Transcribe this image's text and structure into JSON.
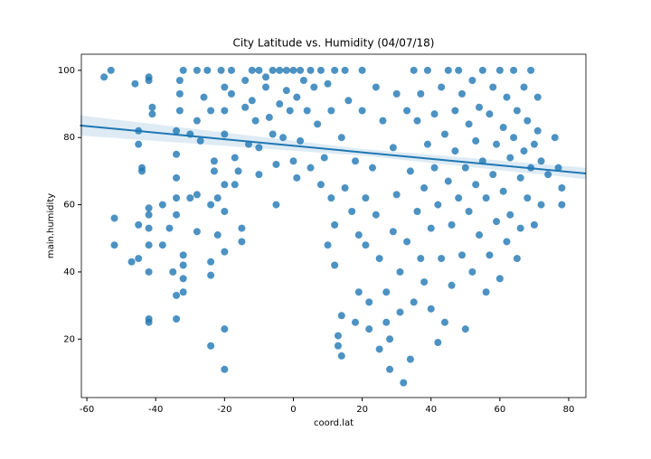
{
  "chart_data": {
    "type": "scatter",
    "title": "City Latitude vs. Humidity (04/07/18)",
    "x_label": "coord.lat",
    "y_label": "main.humidity",
    "color": "#1f77b4",
    "xlim": [
      -61.6,
      85
    ],
    "ylim": [
      2.6,
      104.8
    ],
    "xticks": [
      -60,
      -40,
      -20,
      0,
      20,
      40,
      60,
      80
    ],
    "yticks": [
      20,
      40,
      60,
      80,
      100
    ],
    "series": [
      {
        "x": [
          -55,
          -53,
          -52,
          -52,
          -47,
          -46,
          -45,
          -45,
          -44,
          -44,
          -45,
          -45,
          -42,
          -42,
          -41,
          -41,
          -42,
          -42,
          -42,
          -42,
          -42,
          -42,
          -42,
          -38,
          -38,
          -36,
          -35,
          -34,
          -34,
          -34,
          -34,
          -34,
          -34,
          -34,
          -33,
          -33,
          -32,
          -33,
          -32,
          -32,
          -32,
          -32,
          -30,
          -30,
          -28,
          -28,
          -28,
          -28,
          -27,
          -26,
          -25,
          -24,
          -24,
          -24,
          -24,
          -24,
          -23,
          -23,
          -22,
          -22,
          -21,
          -20,
          -20,
          -20,
          -20,
          -20,
          -20,
          -20,
          -20,
          -18,
          -18,
          -17,
          -17,
          -16,
          -15,
          -15,
          -14,
          -14,
          -13,
          -12,
          -12,
          -11,
          -10,
          -10,
          -10,
          -8,
          -8,
          -7,
          -6,
          -6,
          -5,
          -5,
          -4,
          -4,
          -3,
          -2,
          -2,
          -1,
          0,
          0,
          1,
          1,
          2,
          2,
          3,
          4,
          5,
          5,
          6,
          7,
          8,
          8,
          9,
          10,
          10,
          11,
          11,
          12,
          12,
          12,
          13,
          13,
          14,
          14,
          14,
          15,
          15,
          16,
          17,
          18,
          18,
          19,
          19,
          20,
          20,
          21,
          21,
          22,
          22,
          23,
          24,
          24,
          25,
          25,
          26,
          27,
          27,
          28,
          28,
          29,
          29,
          30,
          30,
          31,
          31,
          32,
          33,
          33,
          34,
          34,
          35,
          35,
          36,
          36,
          37,
          37,
          38,
          38,
          39,
          39,
          40,
          40,
          41,
          41,
          42,
          42,
          43,
          43,
          44,
          44,
          45,
          45,
          46,
          46,
          47,
          47,
          48,
          48,
          49,
          49,
          50,
          50,
          51,
          51,
          52,
          52,
          53,
          53,
          54,
          54,
          55,
          55,
          56,
          56,
          57,
          57,
          58,
          58,
          59,
          59,
          60,
          60,
          61,
          61,
          62,
          62,
          63,
          63,
          64,
          64,
          65,
          65,
          66,
          66,
          67,
          67,
          68,
          68,
          69,
          69,
          70,
          70,
          71,
          71,
          72,
          72,
          74,
          76,
          77,
          78,
          78
        ],
        "values": [
          98,
          100,
          56,
          48,
          43,
          96,
          82,
          78,
          71,
          70,
          54,
          44,
          98,
          97,
          89,
          87,
          59,
          57,
          53,
          48,
          40,
          26,
          25,
          60,
          48,
          53,
          40,
          33,
          26,
          57,
          62,
          68,
          75,
          82,
          93,
          97,
          100,
          88,
          45,
          42,
          38,
          34,
          62,
          81,
          100,
          85,
          63,
          52,
          79,
          92,
          100,
          88,
          60,
          43,
          39,
          18,
          73,
          70,
          62,
          51,
          100,
          95,
          88,
          81,
          66,
          58,
          46,
          23,
          11,
          100,
          93,
          74,
          66,
          70,
          53,
          49,
          97,
          89,
          78,
          100,
          91,
          85,
          100,
          77,
          69,
          98,
          95,
          86,
          100,
          81,
          72,
          60,
          100,
          90,
          80,
          100,
          94,
          88,
          100,
          73,
          92,
          68,
          100,
          79,
          97,
          88,
          100,
          71,
          95,
          84,
          100,
          66,
          74,
          96,
          48,
          88,
          62,
          100,
          54,
          42,
          21,
          18,
          27,
          15,
          80,
          65,
          100,
          91,
          58,
          73,
          25,
          51,
          34,
          100,
          88,
          62,
          48,
          31,
          23,
          71,
          95,
          57,
          17,
          44,
          85,
          34,
          25,
          11,
          20,
          52,
          77,
          93,
          63,
          40,
          28,
          7,
          88,
          49,
          14,
          70,
          31,
          100,
          58,
          85,
          44,
          93,
          65,
          37,
          100,
          78,
          53,
          29,
          71,
          87,
          19,
          60,
          95,
          44,
          81,
          25,
          100,
          67,
          54,
          36,
          88,
          76,
          62,
          100,
          45,
          93,
          23,
          71,
          84,
          58,
          97,
          40,
          66,
          79,
          89,
          51,
          100,
          73,
          34,
          62,
          87,
          45,
          95,
          69,
          55,
          78,
          38,
          100,
          83,
          64,
          49,
          92,
          74,
          57,
          100,
          80,
          44,
          88,
          68,
          53,
          95,
          76,
          62,
          85,
          100,
          71,
          78,
          54,
          92,
          82,
          73,
          60,
          69,
          80,
          71,
          65,
          60
        ]
      }
    ],
    "fit": {
      "x": [
        -62,
        20,
        85
      ],
      "y": [
        83.6,
        75.6,
        69.3
      ],
      "ci_low": [
        80.6,
        74.6,
        67.6
      ],
      "ci_high": [
        86.6,
        76.6,
        71.0
      ]
    }
  }
}
